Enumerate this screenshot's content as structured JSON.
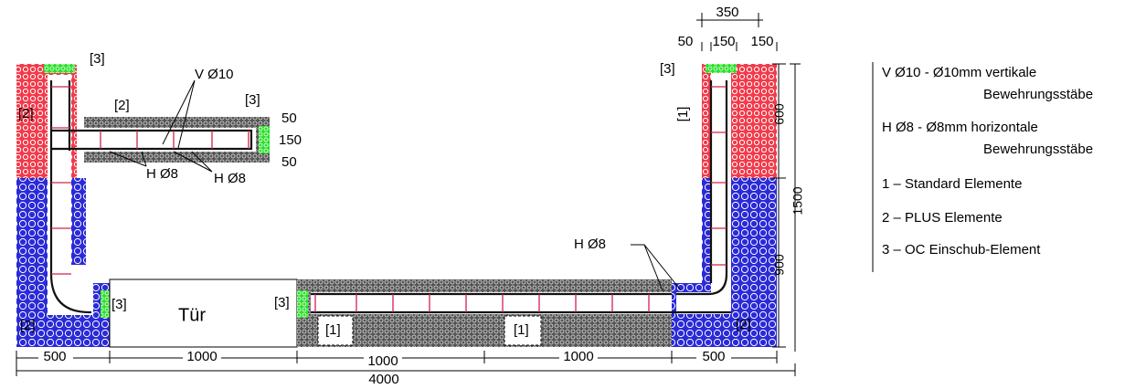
{
  "element_labels": [
    "[3]",
    "[2]",
    "[2]",
    "[3]",
    "[3]",
    "[1]",
    "[3]",
    "[2]",
    "[3]",
    "[1]",
    "[1]",
    "[2]"
  ],
  "rebar_labels": [
    "V Ø10",
    "H Ø8",
    "H Ø8",
    "H Ø8"
  ],
  "door": "Tür",
  "dimensions": {
    "top_total": 350,
    "top": [
      50,
      150,
      150
    ],
    "wall": [
      50,
      150,
      50
    ],
    "right": [
      600,
      1500,
      900
    ],
    "bottom": [
      500,
      1000,
      1000,
      1000,
      500
    ],
    "total": 4000
  },
  "legend": [
    {
      "line1": "V Ø10 - Ø10mm vertikale",
      "line2": "Bewehrungsstäbe"
    },
    {
      "line1": "H Ø8 - Ø8mm horizontale",
      "line2": "Bewehrungsstäbe"
    },
    {
      "line1": "1 – Standard Elemente"
    },
    {
      "line1": "2 – PLUS Elemente"
    },
    {
      "line1": "3 – OC Einschub-Element"
    }
  ]
}
